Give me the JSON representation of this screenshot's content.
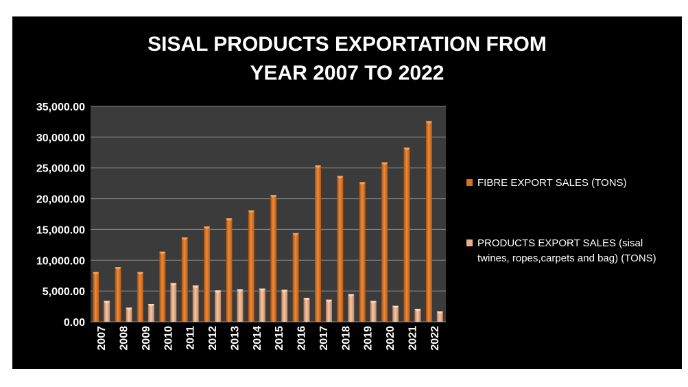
{
  "chart_data": {
    "type": "bar",
    "title_lines": [
      "SISAL PRODUCTS EXPORTATION FROM",
      "YEAR 2007 TO 2022"
    ],
    "categories": [
      "2007",
      "2008",
      "2009",
      "2010",
      "2011",
      "2012",
      "2013",
      "2014",
      "2015",
      "2016",
      "2017",
      "2018",
      "2019",
      "2020",
      "2021",
      "2022"
    ],
    "series": [
      {
        "name": "FIBRE EXPORT SALES (TONS)",
        "color": "#d9701e",
        "values": [
          8100,
          8900,
          8100,
          11400,
          13700,
          15500,
          16800,
          18100,
          20600,
          14400,
          25400,
          23700,
          22700,
          25900,
          28300,
          32600
        ]
      },
      {
        "name": "PRODUCTS EXPORT SALES  (sisal twines, ropes,carpets and bag) (TONS)",
        "color": "#eab08a",
        "values": [
          3400,
          2300,
          2900,
          6300,
          5900,
          5100,
          5300,
          5400,
          5200,
          3900,
          3600,
          4500,
          3400,
          2600,
          2100,
          1700
        ]
      }
    ],
    "yticks": [
      "35,000.00",
      "30,000.00",
      "25,000.00",
      "20,000.00",
      "15,000.00",
      "10,000.00",
      "5,000.00",
      "0.00"
    ],
    "ylim": [
      0,
      35000
    ],
    "grid": true,
    "legend_position": "right"
  }
}
